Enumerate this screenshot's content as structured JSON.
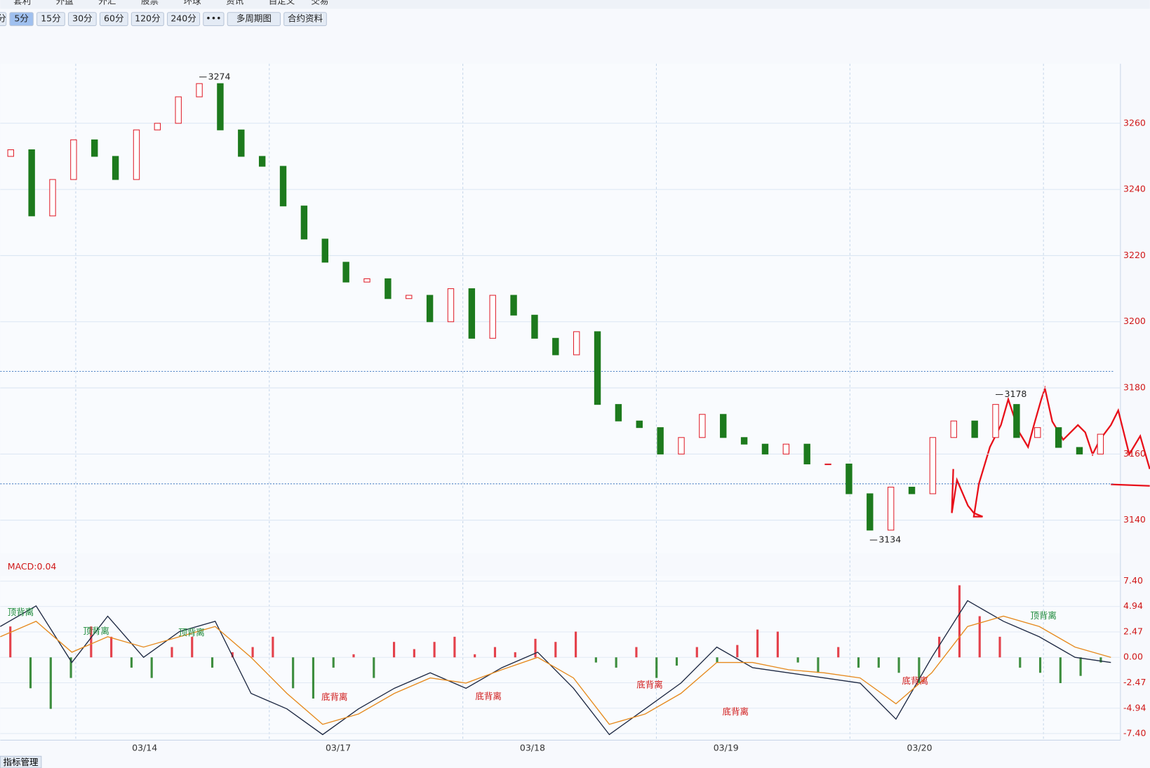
{
  "menu": [
    "套利",
    "外盘",
    "外汇",
    "股票",
    "环球",
    "资讯",
    "自定义",
    "交易"
  ],
  "periods": [
    "分",
    "5分",
    "15分",
    "30分",
    "60分",
    "120分",
    "240分"
  ],
  "more": "•••",
  "multi": "多周期图",
  "contract": "合约资料",
  "indicator_manage": "指标管理",
  "chart_data": [
    {
      "type": "candlestick",
      "dates": [
        "03/14",
        "03/17",
        "03/18",
        "03/19",
        "03/20"
      ],
      "open": [
        3250,
        3252,
        3232,
        3243,
        3255,
        3250,
        3243,
        3258,
        3260,
        3268,
        3272,
        3258,
        3250,
        3247,
        3235,
        3225,
        3218,
        3212,
        3213,
        3207,
        3208,
        3200,
        3210,
        3195,
        3208,
        3202,
        3195,
        3190,
        3197,
        3175,
        3170,
        3168,
        3160,
        3165,
        3172,
        3165,
        3163,
        3160,
        3163,
        3157,
        3157,
        3148,
        3137,
        3150,
        3148,
        3165,
        3170,
        3165,
        3175,
        3165,
        3168,
        3162,
        3160
      ],
      "close": [
        3252,
        3232,
        3243,
        3255,
        3250,
        3243,
        3258,
        3260,
        3268,
        3272,
        3258,
        3250,
        3247,
        3235,
        3225,
        3218,
        3212,
        3213,
        3207,
        3208,
        3200,
        3210,
        3195,
        3208,
        3202,
        3195,
        3190,
        3197,
        3175,
        3170,
        3168,
        3160,
        3165,
        3172,
        3165,
        3163,
        3160,
        3163,
        3157,
        3157,
        3148,
        3137,
        3150,
        3148,
        3165,
        3170,
        3165,
        3175,
        3165,
        3168,
        3162,
        3160,
        3166
      ],
      "ylim": [
        3130,
        3278
      ],
      "yticks": [
        3140,
        3160,
        3180,
        3200,
        3220,
        3240,
        3260
      ],
      "annotations": [
        {
          "text": "3274",
          "value": 3274
        },
        {
          "text": "3134",
          "value": 3134
        },
        {
          "text": "3178",
          "value": 3178
        }
      ],
      "reference_lines": [
        3185,
        3151
      ],
      "up_color": "#e0202c",
      "down_color": "#1d7a1d",
      "grid": true
    },
    {
      "type": "macd",
      "title": "MACD:0.04",
      "histogram": [
        3,
        -3,
        -5,
        -2,
        3,
        2,
        -1,
        -2,
        1,
        2,
        -1,
        0.5,
        1,
        2,
        -3,
        -4,
        -1,
        0.3,
        -2,
        1.5,
        0.8,
        1.5,
        2,
        0.3,
        1,
        0.5,
        1.8,
        1.5,
        2.5,
        -0.5,
        -1,
        1,
        -2,
        -0.8,
        1,
        -0.5,
        1.2,
        2.7,
        2.5,
        -0.5,
        -1.5,
        1,
        -1,
        -1,
        -1.5,
        -2.5,
        2,
        7,
        4,
        2,
        -1,
        -1.5,
        -2.5,
        -1.8,
        -0.5
      ],
      "dif": [
        3,
        5,
        -0.5,
        4,
        0,
        2.5,
        3.5,
        -3.5,
        -5,
        -7.5,
        -5,
        -3,
        -1.5,
        -3,
        -1,
        0.5,
        -3,
        -7.5,
        -5,
        -2.5,
        1,
        -1,
        -1.5,
        -2,
        -2.5,
        -6,
        0,
        5.5,
        3.5,
        2,
        0,
        -0.5
      ],
      "dea": [
        2,
        3.5,
        0.5,
        2,
        1,
        2,
        3,
        0,
        -3.5,
        -6.5,
        -5.5,
        -3.5,
        -2,
        -2.5,
        -1.2,
        0,
        -2,
        -6.5,
        -5.5,
        -3.5,
        -0.5,
        -0.5,
        -1.2,
        -1.5,
        -2,
        -4.5,
        -1.5,
        3,
        4,
        3,
        1,
        0
      ],
      "dif_color": "#1f2a44",
      "dea_color": "#e68a1e",
      "ylim": [
        -8.04,
        7.9
      ],
      "yticks": [
        {
          "value": 7.4,
          "label": "7.40"
        },
        {
          "value": 4.94,
          "label": "4.94"
        },
        {
          "value": 2.47,
          "label": "2.47"
        },
        {
          "value": 0,
          "label": "0.00"
        },
        {
          "value": -2.47,
          "label": "-2.47"
        },
        {
          "value": -4.94,
          "label": "-4.94"
        },
        {
          "value": -7.4,
          "label": "-7.40"
        }
      ],
      "labels": [
        {
          "text": "顶背离",
          "kind": "top"
        },
        {
          "text": "顶背离",
          "kind": "top"
        },
        {
          "text": "顶背离",
          "kind": "top"
        },
        {
          "text": "底背离",
          "kind": "bottom"
        },
        {
          "text": "底背离",
          "kind": "bottom"
        },
        {
          "text": "底背离",
          "kind": "bottom"
        },
        {
          "text": "底背离",
          "kind": "bottom"
        },
        {
          "text": "底背离",
          "kind": "bottom"
        },
        {
          "text": "顶背离",
          "kind": "top"
        }
      ]
    }
  ]
}
